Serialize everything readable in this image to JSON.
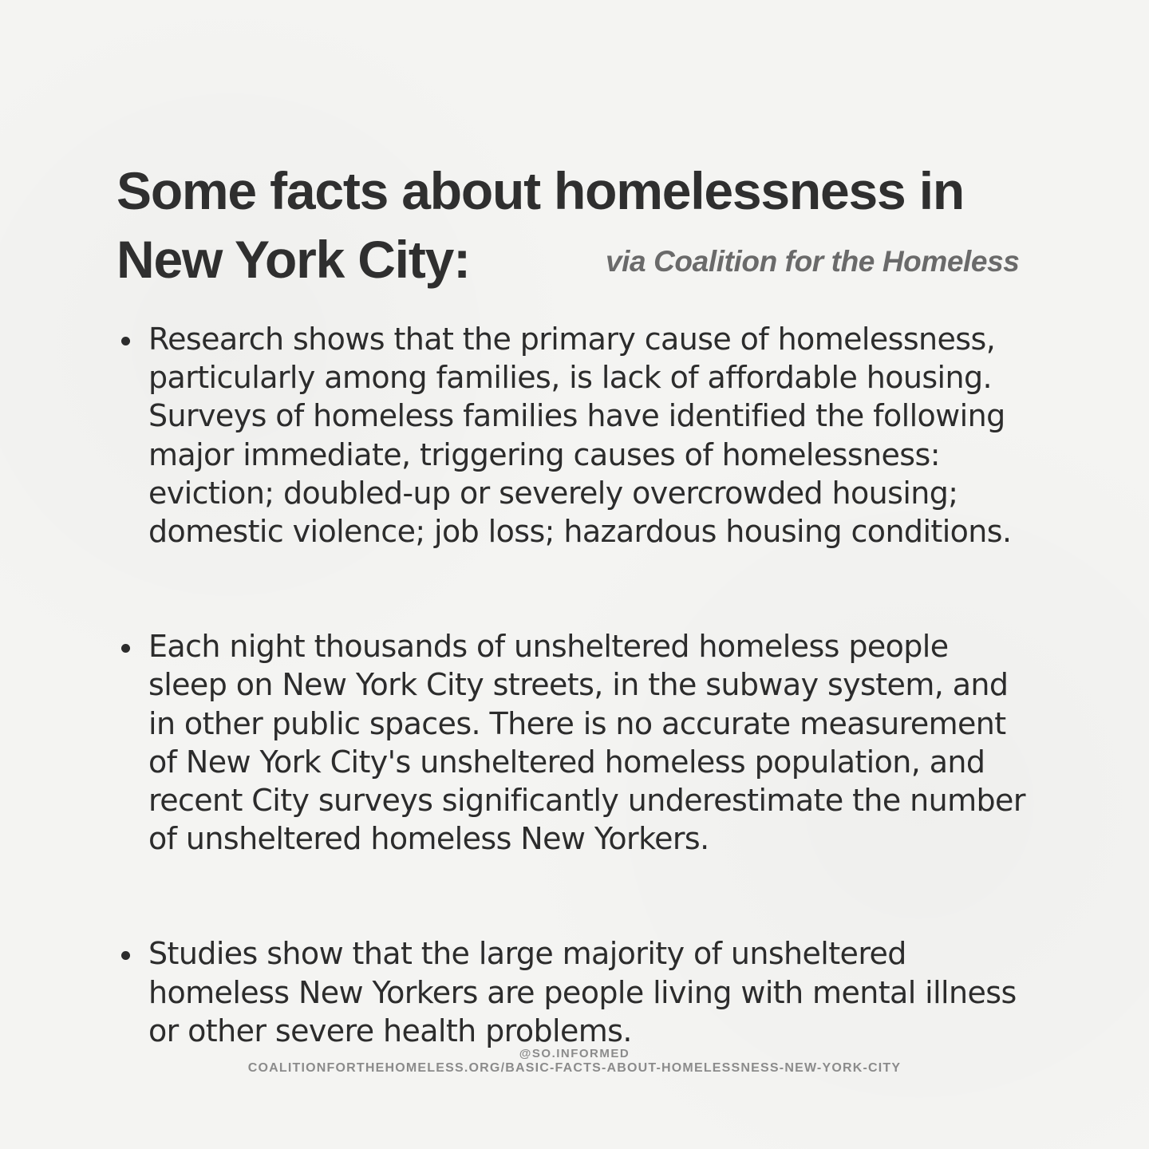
{
  "header": {
    "title_line_1": "Some facts about homelessness in",
    "title_line_2": "New York City:",
    "source": "via Coalition for the Homeless"
  },
  "facts": [
    {
      "lines": [
        "Research shows that the primary cause of homelessness,",
        "particularly among families, is lack of affordable housing.",
        "Surveys of homeless families have identified the following",
        "major immediate, triggering causes of homelessness:",
        "eviction; doubled-up or severely overcrowded housing;",
        "domestic violence; job loss; hazardous housing conditions."
      ]
    },
    {
      "lines": [
        "Each night thousands of unsheltered homeless people",
        "sleep on New York City streets, in the subway system, and",
        "in other public spaces. There is no accurate measurement",
        "of New York City's unsheltered homeless population, and",
        "recent City surveys significantly underestimate the number",
        "of unsheltered homeless New Yorkers."
      ]
    },
    {
      "lines": [
        "Studies show that the large majority of unsheltered",
        "homeless New Yorkers are people living with mental illness",
        "or other severe health problems."
      ]
    }
  ],
  "footer": {
    "handle": "@SO.INFORMED",
    "url": "COALITIONFORTHEHOMELESS.ORG/BASIC-FACTS-ABOUT-HOMELESSNESS-NEW-YORK-CITY"
  }
}
